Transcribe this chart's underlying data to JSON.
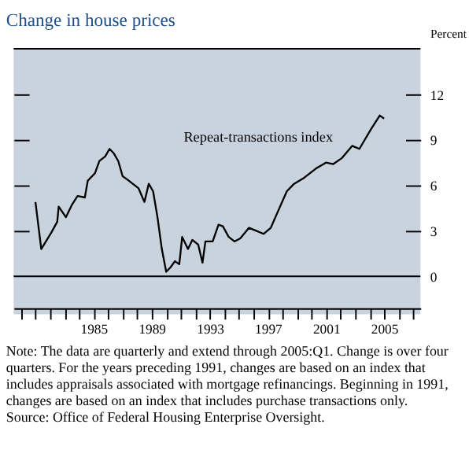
{
  "chart_data": {
    "type": "line",
    "title": "Change in house prices",
    "ylabel": "Percent",
    "x": [
      1981.0,
      1981.4,
      1982.1,
      1982.5,
      1982.6,
      1983.1,
      1983.5,
      1983.9,
      1984.4,
      1984.6,
      1985.1,
      1985.4,
      1985.8,
      1986.1,
      1986.4,
      1986.7,
      1987.0,
      1987.3,
      1987.7,
      1988.1,
      1988.5,
      1988.8,
      1989.1,
      1989.4,
      1989.7,
      1990.0,
      1990.3,
      1990.6,
      1990.9,
      1991.1,
      1991.5,
      1991.8,
      1992.2,
      1992.5,
      1992.7,
      1993.2,
      1993.6,
      1993.9,
      1994.3,
      1994.7,
      1995.1,
      1995.7,
      1996.2,
      1996.7,
      1997.2,
      1997.7,
      1998.3,
      1998.8,
      1999.5,
      2000.3,
      2001.0,
      2001.5,
      2002.1,
      2002.8,
      2003.3,
      2004.1,
      2004.7,
      2005.0
    ],
    "series": [
      {
        "name": "Repeat-transactions index",
        "color": "#000000",
        "values": [
          4.9,
          1.8,
          2.9,
          3.6,
          4.6,
          3.9,
          4.7,
          5.3,
          5.2,
          6.3,
          6.8,
          7.6,
          7.9,
          8.4,
          8.1,
          7.6,
          6.6,
          6.4,
          6.1,
          5.8,
          4.9,
          6.1,
          5.6,
          3.9,
          1.8,
          0.3,
          0.6,
          1.0,
          0.8,
          2.6,
          1.8,
          2.4,
          2.1,
          0.9,
          2.3,
          2.3,
          3.4,
          3.3,
          2.6,
          2.3,
          2.5,
          3.2,
          3.0,
          2.8,
          3.2,
          4.3,
          5.6,
          6.1,
          6.5,
          7.1,
          7.5,
          7.4,
          7.8,
          8.6,
          8.4,
          9.7,
          10.6,
          10.4
        ]
      }
    ],
    "xlim": [
      1979.5,
      2007.5
    ],
    "xticks": [
      {
        "value": 1980,
        "label": null
      },
      {
        "value": 1981,
        "label": null
      },
      {
        "value": 1982,
        "label": null
      },
      {
        "value": 1983,
        "label": null
      },
      {
        "value": 1984,
        "label": null
      },
      1985,
      {
        "value": 1986,
        "label": null
      },
      {
        "value": 1987,
        "label": null
      },
      {
        "value": 1988,
        "label": null
      },
      1989,
      {
        "value": 1990,
        "label": null
      },
      {
        "value": 1991,
        "label": null
      },
      {
        "value": 1992,
        "label": null
      },
      1993,
      {
        "value": 1994,
        "label": null
      },
      {
        "value": 1995,
        "label": null
      },
      {
        "value": 1996,
        "label": null
      },
      1997,
      {
        "value": 1998,
        "label": null
      },
      {
        "value": 1999,
        "label": null
      },
      {
        "value": 2000,
        "label": null
      },
      2001,
      {
        "value": 2002,
        "label": null
      },
      {
        "value": 2003,
        "label": null
      },
      {
        "value": 2004,
        "label": null
      },
      2005,
      {
        "value": 2006,
        "label": null
      },
      {
        "value": 2007,
        "label": null
      }
    ],
    "ylim": [
      -2.5,
      15
    ],
    "yticks": [
      0,
      3,
      6,
      9,
      12
    ],
    "ref_lines": [
      {
        "axis": "y",
        "value": 0,
        "label": null,
        "color": "#000000"
      }
    ],
    "grid": false,
    "marker": "none",
    "line_style": "solid",
    "annotations": [
      "Note: The data are quarterly and extend through 2005:Q1. Change is over four quarters. For the years preceding 1991, changes are based on an index that includes appraisals associated with mortgage refinancings. Beginning in 1991, changes are based on an index that includes purchase transactions only.",
      "Source: Office of Federal Housing Enterprise Oversight."
    ]
  }
}
